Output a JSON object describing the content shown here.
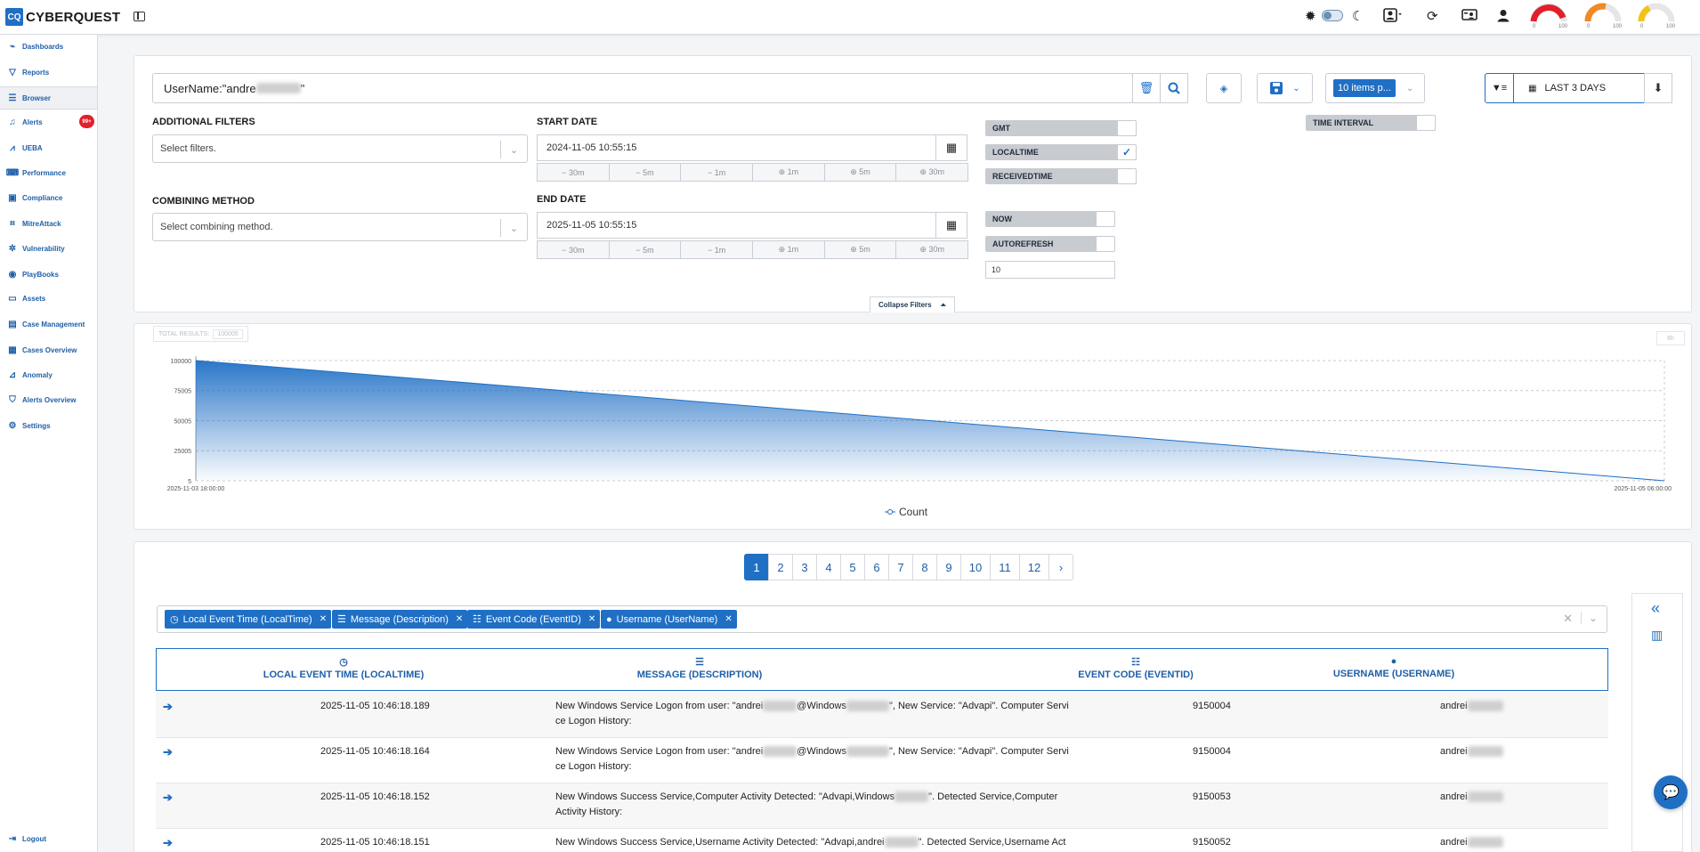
{
  "app": {
    "logo_mark": "CQ",
    "logo_text": "CYBERQUEST"
  },
  "topbar": {
    "gauges": [
      {
        "label": "CPU",
        "min": "0",
        "max": "100",
        "color": "#e0202a",
        "value_fraction": 0.95
      },
      {
        "label": "MEM",
        "min": "0",
        "max": "100",
        "color": "#f08a24",
        "value_fraction": 0.6
      },
      {
        "label": "DISK",
        "min": "0",
        "max": "100",
        "color": "#f2c21b",
        "value_fraction": 0.35
      }
    ],
    "icons": [
      "brightness-icon",
      "theme-toggle",
      "moon-icon",
      "user-card-icon",
      "refresh-icon",
      "screen-user-icon",
      "user-icon"
    ]
  },
  "sidebar": {
    "items": [
      {
        "label": "Dashboards",
        "icon": "chart-line-icon"
      },
      {
        "label": "Reports",
        "icon": "filter-icon"
      },
      {
        "label": "Browser",
        "icon": "list-icon",
        "active": true
      },
      {
        "label": "Alerts",
        "icon": "bell-icon",
        "badge": "99+"
      },
      {
        "label": "UEBA",
        "icon": "chart-area-icon"
      },
      {
        "label": "Performance",
        "icon": "keyboard-icon"
      },
      {
        "label": "Compliance",
        "icon": "briefcase-check-icon"
      },
      {
        "label": "MitreAttack",
        "icon": "network-icon"
      },
      {
        "label": "Vulnerability",
        "icon": "bug-icon"
      },
      {
        "label": "PlayBooks",
        "icon": "robot-icon"
      },
      {
        "label": "Assets",
        "icon": "laptop-icon"
      },
      {
        "label": "Case Management",
        "icon": "briefcase-icon"
      },
      {
        "label": "Cases Overview",
        "icon": "grid-icon"
      },
      {
        "label": "Anomaly",
        "icon": "anomaly-icon"
      },
      {
        "label": "Alerts Overview",
        "icon": "shield-icon"
      },
      {
        "label": "Settings",
        "icon": "gear-icon"
      }
    ],
    "logout": "Logout"
  },
  "query": {
    "value_prefix": "UserName:\"andre",
    "value_suffix": "\"",
    "items_per_page": "10 items p...",
    "time_range": "LAST 3 DAYS"
  },
  "filters": {
    "additional_label": "ADDITIONAL FILTERS",
    "additional_placeholder": "Select filters.",
    "combining_label": "COMBINING METHOD",
    "combining_placeholder": "Select combining method.",
    "start_label": "START DATE",
    "start_value": "2024-11-05 10:55:15",
    "end_label": "END DATE",
    "end_value": "2025-11-05 10:55:15",
    "shift_labels": [
      "− 30m",
      "− 5m",
      "− 1m",
      "⊕ 1m",
      "⊕ 5m",
      "⊕ 30m"
    ],
    "gmt": "GMT",
    "localtime": "LOCALTIME",
    "localtime_checked": true,
    "receivedtime": "RECEIVEDTIME",
    "time_interval": "TIME INTERVAL",
    "now": "NOW",
    "autorefresh": "AUTOREFRESH",
    "autorefresh_value": "10",
    "collapse": "Collapse Filters"
  },
  "chart": {
    "total_results_label": "TOTAL RESULTS:",
    "total_results_value": "100005",
    "interval_chip": "6h"
  },
  "chart_data": {
    "type": "area",
    "x": [
      "2025-11-03 18:00:00",
      "2025-11-05 06:00:00"
    ],
    "y_ticks": [
      "100000",
      "75005",
      "50005",
      "25005",
      "5"
    ],
    "series": [
      {
        "name": "Count",
        "values": [
          100000,
          5
        ]
      }
    ],
    "ylim": [
      5,
      100000
    ],
    "grid": true,
    "legend": "bottom-center"
  },
  "pagination": {
    "pages": [
      "1",
      "2",
      "3",
      "4",
      "5",
      "6",
      "7",
      "8",
      "9",
      "10",
      "11",
      "12"
    ],
    "next": "›",
    "active": "1"
  },
  "columns_chips": [
    {
      "label": "Local Event Time (LocalTime)",
      "icon": "clock-icon"
    },
    {
      "label": "Message (Description)",
      "icon": "list-icon"
    },
    {
      "label": "Event Code (EventID)",
      "icon": "list-ol-icon"
    },
    {
      "label": "Username (UserName)",
      "icon": "user-icon"
    }
  ],
  "table": {
    "headers": [
      {
        "label": "LOCAL EVENT TIME (LOCALTIME)",
        "icon": "⏱"
      },
      {
        "label": "MESSAGE (DESCRIPTION)",
        "icon": "☰"
      },
      {
        "label": "EVENT CODE (EVENTID)",
        "icon": "☷"
      },
      {
        "label": "USERNAME (USERNAME)",
        "icon": "👤"
      }
    ],
    "rows": [
      {
        "time": "2025-11-05 10:46:18.189",
        "msg1": "New Windows Service Logon from user: \"andrei",
        "msg2": "@Windows",
        "msg3": "\", New Service: \"Advapi\". Computer Servi",
        "msg4": "ce Logon History:",
        "code": "9150004",
        "user": "andrei"
      },
      {
        "time": "2025-11-05 10:46:18.164",
        "msg1": "New Windows Service Logon from user: \"andrei",
        "msg2": "@Windows",
        "msg3": "\", New Service: \"Advapi\". Computer Servi",
        "msg4": "ce Logon History:",
        "code": "9150004",
        "user": "andrei"
      },
      {
        "time": "2025-11-05 10:46:18.152",
        "msg1": "New Windows Success Service,Computer Activity Detected: \"Advapi,Windows",
        "msg2": "",
        "msg3": "\". Detected Service,Computer",
        "msg4": "Activity History:",
        "code": "9150053",
        "user": "andrei"
      },
      {
        "time": "2025-11-05 10:46:18.151",
        "msg1": "New Windows Success Service,Username Activity Detected: \"Advapi,andrei",
        "msg2": "",
        "msg3": "\". Detected Service,Username Act",
        "msg4": "",
        "code": "9150052",
        "user": "andrei"
      }
    ]
  }
}
